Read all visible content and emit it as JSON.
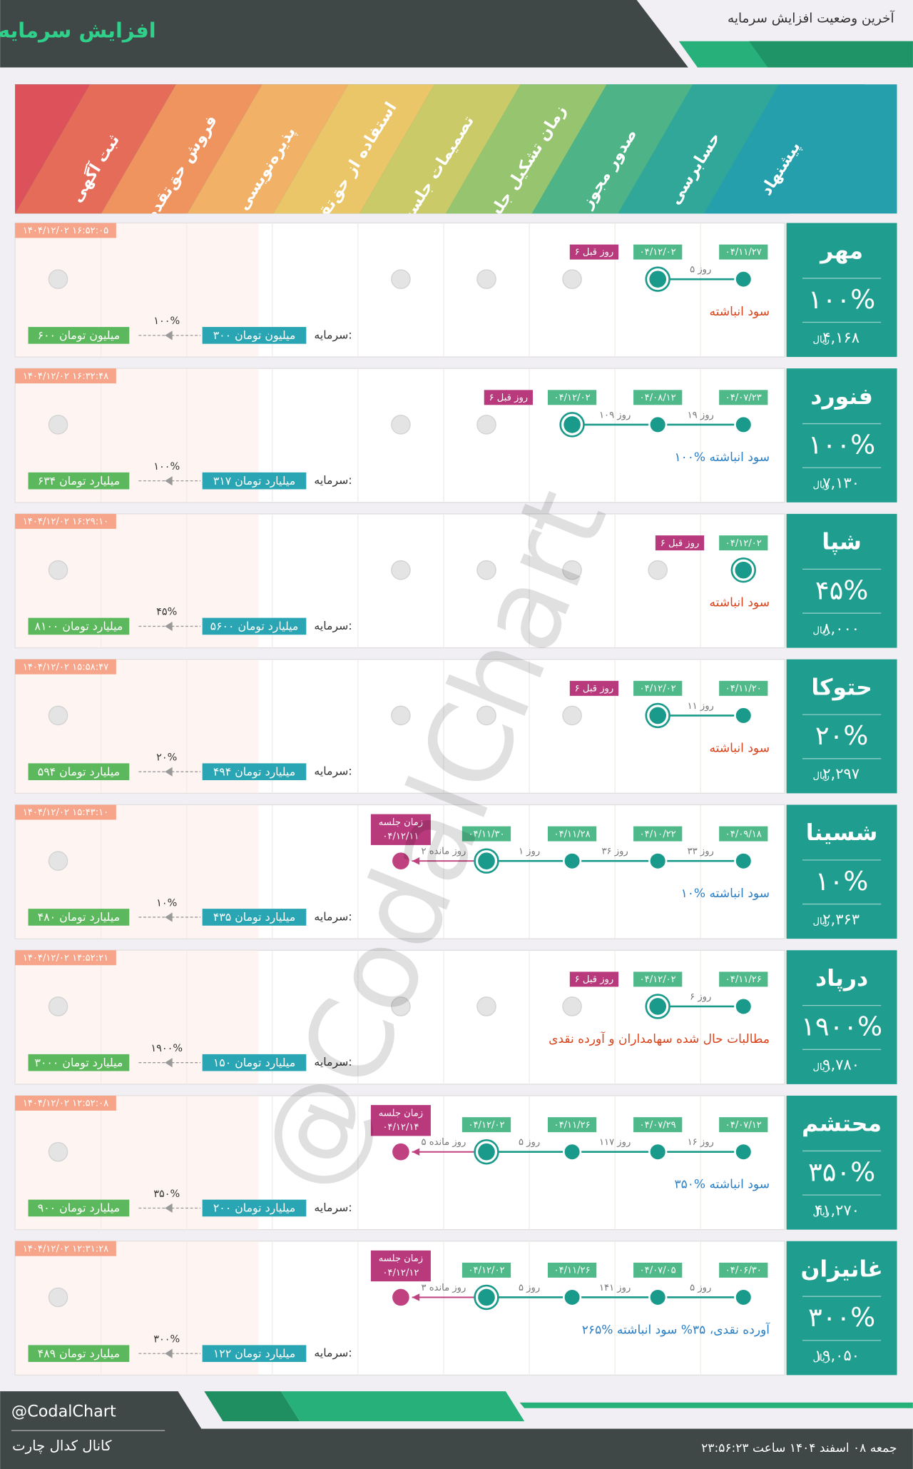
{
  "header": {
    "title": "افزایش سرمایه",
    "subtitle": "آخرین وضعیت افزایش سرمایه"
  },
  "stages": [
    "ثبت آگهی",
    "فروش حق‌تقدم",
    "پذیره‌نویسی",
    "استفاده از حق‌تقدم",
    "تصمیمات جلسه",
    "زمان تشکیل جلسه",
    "صدور مجوز",
    "حسابرسی",
    "پیشنهاد"
  ],
  "currency": "ریال",
  "capital_label": "سرمایه:",
  "companies": [
    {
      "name": "مهر",
      "percent": "۱۰۰%",
      "price": "۴,۱۶۸",
      "timestamp": "۱۴۰۴/۱۲/۰۲ ۱۶:۵۲:۰۵",
      "steps": [
        {
          "stage": "پیشنهاد",
          "date": "۰۴/۱۱/۲۷"
        },
        {
          "stage": "حسابرسی",
          "date": "۰۴/۱۲/۰۲"
        }
      ],
      "gaps": [
        "۵ روز"
      ],
      "status": "۶ روز قبل",
      "note": "سود انباشته",
      "note_color": "#d9441c",
      "capital_from": "۳۰۰ میلیون تومان",
      "capital_to": "۶۰۰ میلیون تومان",
      "increase": "۱۰۰%"
    },
    {
      "name": "فنورد",
      "percent": "۱۰۰%",
      "price": "۷,۱۳۰",
      "timestamp": "۱۴۰۴/۱۲/۰۲ ۱۶:۳۲:۴۸",
      "steps": [
        {
          "stage": "پیشنهاد",
          "date": "۰۴/۰۷/۲۳"
        },
        {
          "stage": "حسابرسی",
          "date": "۰۴/۰۸/۱۲"
        },
        {
          "stage": "صدور مجوز",
          "date": "۰۴/۱۲/۰۲"
        }
      ],
      "gaps": [
        "۱۹ روز",
        "۱۰۹ روز"
      ],
      "status": "۶ روز قبل",
      "note": "۱۰۰% سود انباشته",
      "note_color": "#2c7fc4",
      "capital_from": "۳۱۷ میلیارد تومان",
      "capital_to": "۶۳۴ میلیارد تومان",
      "increase": "۱۰۰%"
    },
    {
      "name": "شپا",
      "percent": "۴۵%",
      "price": "۸,۰۰۰",
      "timestamp": "۱۴۰۴/۱۲/۰۲ ۱۶:۲۹:۱۰",
      "steps": [
        {
          "stage": "پیشنهاد",
          "date": "۰۴/۱۲/۰۲"
        }
      ],
      "gaps": [],
      "status": "۶ روز قبل",
      "note": "سود انباشته",
      "note_color": "#d9441c",
      "capital_from": "۵۶۰۰ میلیارد تومان",
      "capital_to": "۸۱۰۰ میلیارد تومان",
      "increase": "۴۵%"
    },
    {
      "name": "حتوکا",
      "percent": "۲۰%",
      "price": "۲,۲۹۷",
      "timestamp": "۱۴۰۴/۱۲/۰۲ ۱۵:۵۸:۴۷",
      "steps": [
        {
          "stage": "پیشنهاد",
          "date": "۰۴/۱۱/۲۰"
        },
        {
          "stage": "حسابرسی",
          "date": "۰۴/۱۲/۰۲"
        }
      ],
      "gaps": [
        "۱۱ روز"
      ],
      "status": "۶ روز قبل",
      "note": "سود انباشته",
      "note_color": "#d9441c",
      "capital_from": "۴۹۴ میلیارد تومان",
      "capital_to": "۵۹۴ میلیارد تومان",
      "increase": "۲۰%"
    },
    {
      "name": "شسینا",
      "percent": "۱۰%",
      "price": "۲,۳۶۳",
      "timestamp": "۱۴۰۴/۱۲/۰۲ ۱۵:۴۳:۱۰",
      "steps": [
        {
          "stage": "پیشنهاد",
          "date": "۰۴/۰۹/۱۸"
        },
        {
          "stage": "حسابرسی",
          "date": "۰۴/۱۰/۲۲"
        },
        {
          "stage": "صدور مجوز",
          "date": "۰۴/۱۱/۲۸"
        },
        {
          "stage": "زمان تشکیل جلسه",
          "date": "۰۴/۱۱/۳۰"
        },
        {
          "stage": "تصمیمات جلسه",
          "label": "زمان جلسه",
          "date": "۰۴/۱۲/۱۱",
          "upcoming": true
        }
      ],
      "gaps": [
        "۳۳ روز",
        "۳۶ روز",
        "۱ روز",
        "۲ روز مانده"
      ],
      "note": "۱۰% سود انباشته",
      "note_color": "#2c7fc4",
      "capital_from": "۴۳۵ میلیارد تومان",
      "capital_to": "۴۸۰ میلیارد تومان",
      "increase": "۱۰%"
    },
    {
      "name": "درپاد",
      "percent": "۱۹۰۰%",
      "price": "۹,۷۸۰",
      "timestamp": "۱۴۰۴/۱۲/۰۲ ۱۴:۵۲:۲۱",
      "steps": [
        {
          "stage": "پیشنهاد",
          "date": "۰۴/۱۱/۲۶"
        },
        {
          "stage": "حسابرسی",
          "date": "۰۴/۱۲/۰۲"
        }
      ],
      "gaps": [
        "۶ روز"
      ],
      "status": "۶ روز قبل",
      "note": "مطالبات حال شده سهامداران و آورده نقدی",
      "note_color": "#d9441c",
      "capital_from": "۱۵۰ میلیارد تومان",
      "capital_to": "۳۰۰۰ میلیارد تومان",
      "increase": "۱۹۰۰%"
    },
    {
      "name": "محتشم",
      "percent": "۳۵۰%",
      "price": "۴۱,۲۷۰",
      "timestamp": "۱۴۰۴/۱۲/۰۲ ۱۲:۵۲:۰۸",
      "steps": [
        {
          "stage": "پیشنهاد",
          "date": "۰۴/۰۷/۱۲"
        },
        {
          "stage": "حسابرسی",
          "date": "۰۴/۰۷/۲۹"
        },
        {
          "stage": "صدور مجوز",
          "date": "۰۴/۱۱/۲۶"
        },
        {
          "stage": "زمان تشکیل جلسه",
          "date": "۰۴/۱۲/۰۲"
        },
        {
          "stage": "تصمیمات جلسه",
          "label": "زمان جلسه",
          "date": "۰۴/۱۲/۱۴",
          "upcoming": true
        }
      ],
      "gaps": [
        "۱۶ روز",
        "۱۱۷ روز",
        "۵ روز",
        "۵ روز مانده"
      ],
      "note": "۳۵۰% سود انباشته",
      "note_color": "#2c7fc4",
      "capital_from": "۲۰۰ میلیارد تومان",
      "capital_to": "۹۰۰ میلیارد تومان",
      "increase": "۳۵۰%"
    },
    {
      "name": "غانیزان",
      "percent": "۳۰۰%",
      "price": "۱۹,۰۵۰",
      "timestamp": "۱۴۰۴/۱۲/۰۲ ۱۲:۳۱:۲۸",
      "steps": [
        {
          "stage": "پیشنهاد",
          "date": "۰۴/۰۶/۳۰"
        },
        {
          "stage": "حسابرسی",
          "date": "۰۴/۰۷/۰۵"
        },
        {
          "stage": "صدور مجوز",
          "date": "۰۴/۱۱/۲۶"
        },
        {
          "stage": "زمان تشکیل جلسه",
          "date": "۰۴/۱۲/۰۲"
        },
        {
          "stage": "تصمیمات جلسه",
          "label": "زمان جلسه",
          "date": "۰۴/۱۲/۱۲",
          "upcoming": true
        }
      ],
      "gaps": [
        "۵ روز",
        "۱۴۱ روز",
        "۵ روز",
        "۳ روز مانده"
      ],
      "note": "۲۶۵% آورده نقدی، ۳۵% سود انباشته",
      "note_color": "#2c7fc4",
      "capital_from": "۱۲۲ میلیارد تومان",
      "capital_to": "۴۸۹ میلیارد تومان",
      "increase": "۳۰۰%"
    }
  ],
  "watermark": "@CodalChart",
  "footer": {
    "handle": "@CodalChart",
    "channel": "کانال کدال چارت",
    "date": "جمعه ۰۸ اسفند ۱۴۰۴ ساعت ۲۳:۵۶:۲۳"
  }
}
